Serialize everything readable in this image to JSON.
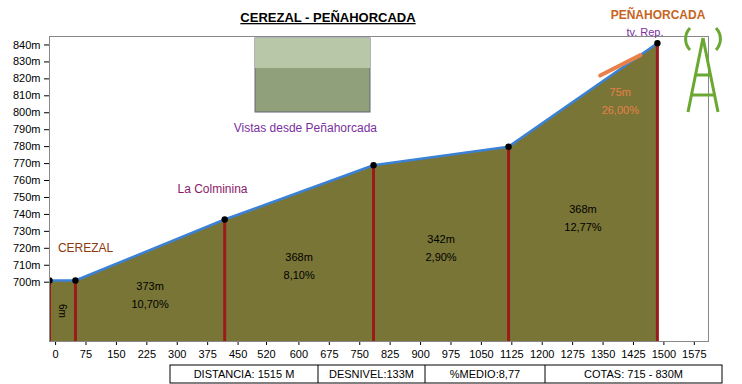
{
  "chart_data": {
    "type": "area",
    "title": "CEREZAL - PEÑAHORCADA",
    "x": [
      -15,
      49,
      417,
      784,
      1117,
      1484
    ],
    "values": [
      701,
      701,
      737,
      769,
      780,
      841
    ],
    "color": "#787536",
    "xlim": [
      -15,
      1610
    ],
    "ylim": [
      665,
      845
    ],
    "xticks": [
      0,
      75,
      150,
      225,
      300,
      375,
      450,
      520,
      600,
      675,
      750,
      825,
      900,
      975,
      1050,
      1125,
      1200,
      1275,
      1350,
      1425,
      1500,
      1575
    ],
    "yticks": [
      {
        "value": 700,
        "label": "700m"
      },
      {
        "value": 710,
        "label": "710m"
      },
      {
        "value": 720,
        "label": "720m"
      },
      {
        "value": 730,
        "label": "730m"
      },
      {
        "value": 740,
        "label": "740m"
      },
      {
        "value": 750,
        "label": "750m"
      },
      {
        "value": 760,
        "label": "760m"
      },
      {
        "value": 770,
        "label": "770m"
      },
      {
        "value": 780,
        "label": "780m"
      },
      {
        "value": 790,
        "label": "790m"
      },
      {
        "value": 800,
        "label": "800m"
      },
      {
        "value": 810,
        "label": "810m"
      },
      {
        "value": 820,
        "label": "820m"
      },
      {
        "value": 830,
        "label": "830m"
      },
      {
        "value": 840,
        "label": "840m"
      }
    ],
    "segments": [
      {
        "length": 373,
        "length_label": "373m",
        "grade": 10.7,
        "grade_label": "10,70%"
      },
      {
        "length": 368,
        "length_label": "368m",
        "grade": 8.1,
        "grade_label": "8,10%"
      },
      {
        "length": 342,
        "length_label": "342m",
        "grade": 2.9,
        "grade_label": "2,90%"
      },
      {
        "length": 368,
        "length_label": "368m",
        "grade": 12.77,
        "grade_label": "12,77%"
      }
    ],
    "start_segment": {
      "length": 6,
      "length_label": "6m",
      "x": 17,
      "y": 683
    },
    "ramp": {
      "x": [
        1343,
        1442
      ],
      "y": [
        822,
        834
      ],
      "length": 75,
      "length_label": "75m",
      "grade": 26,
      "grade_label": "26,00%",
      "color": "#e8804a"
    },
    "annotations": [
      {
        "text": "CEREZAL",
        "x": 74,
        "y": 720,
        "color": "#8b3a0e"
      },
      {
        "text": "La Colminina",
        "x": 387,
        "y": 755,
        "color": "#8b1a6b"
      },
      {
        "text": "Vistas desde Peñahorcada",
        "x": 616,
        "y": 791,
        "color": "#7b2fa0"
      }
    ],
    "summit": {
      "text": "PEÑAHORCADA",
      "subtext": "tv. Rep.",
      "color": "#c8641e",
      "subcolor": "#7b2fa0"
    },
    "summary": [
      "DISTANCIA: 1515 M",
      "DESNIVEL:133M",
      "%MEDIO:8,77",
      "COTAS: 715 - 830M"
    ]
  }
}
